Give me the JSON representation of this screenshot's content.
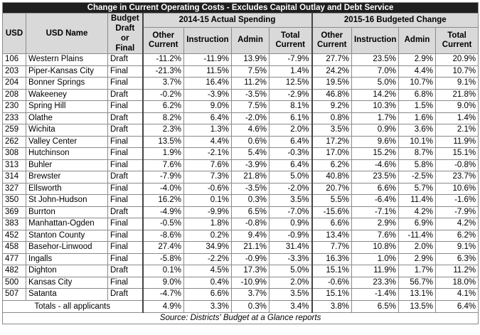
{
  "title": "Change in Current Operating Costs - Excludes Capital Outlay and Debt Service",
  "headers": {
    "usd": "USD",
    "usd_name": "USD Name",
    "budget": "Budget Draft or Final",
    "group_2014": "2014-15 Actual Spending",
    "group_2015": "2015-16 Budgeted Change",
    "sub": [
      "Other Current",
      "Instruction",
      "Admin",
      "Total Current",
      "Other Current",
      "Instruction",
      "Admin",
      "Total Current"
    ]
  },
  "rows": [
    {
      "usd": "106",
      "name": "Western Plains",
      "budget": "Draft",
      "v": [
        "-11.2%",
        "-11.9%",
        "13.9%",
        "-7.9%",
        "27.7%",
        "23.5%",
        "2.9%",
        "20.9%"
      ]
    },
    {
      "usd": "203",
      "name": "Piper-Kansas City",
      "budget": "Final",
      "v": [
        "-21.3%",
        "11.5%",
        "7.5%",
        "1.4%",
        "24.2%",
        "7.0%",
        "4.4%",
        "10.7%"
      ]
    },
    {
      "usd": "204",
      "name": "Bonner Springs",
      "budget": "Final",
      "v": [
        "3.7%",
        "16.4%",
        "11.2%",
        "12.5%",
        "19.5%",
        "5.0%",
        "10.7%",
        "9.1%"
      ]
    },
    {
      "usd": "208",
      "name": "Wakeeney",
      "budget": "Draft",
      "v": [
        "-0.2%",
        "-3.9%",
        "-3.5%",
        "-2.9%",
        "46.8%",
        "14.2%",
        "6.8%",
        "21.8%"
      ]
    },
    {
      "usd": "230",
      "name": "Spring Hill",
      "budget": "Final",
      "v": [
        "6.2%",
        "9.0%",
        "7.5%",
        "8.1%",
        "9.2%",
        "10.3%",
        "1.5%",
        "9.0%"
      ]
    },
    {
      "usd": "233",
      "name": "Olathe",
      "budget": "Draft",
      "v": [
        "8.2%",
        "6.4%",
        "-2.0%",
        "6.1%",
        "0.8%",
        "1.7%",
        "1.6%",
        "1.4%"
      ]
    },
    {
      "usd": "259",
      "name": "Wichita",
      "budget": "Draft",
      "v": [
        "2.3%",
        "1.3%",
        "4.6%",
        "2.0%",
        "3.5%",
        "0.9%",
        "3.6%",
        "2.1%"
      ]
    },
    {
      "usd": "262",
      "name": "Valley Center",
      "budget": "Final",
      "v": [
        "13.5%",
        "4.4%",
        "0.6%",
        "6.4%",
        "17.2%",
        "9.6%",
        "10.1%",
        "11.9%"
      ]
    },
    {
      "usd": "308",
      "name": "Hutchinson",
      "budget": "Final",
      "v": [
        "1.9%",
        "-2.1%",
        "5.4%",
        "-0.3%",
        "17.0%",
        "15.2%",
        "8.7%",
        "15.1%"
      ]
    },
    {
      "usd": "313",
      "name": "Buhler",
      "budget": "Final",
      "v": [
        "7.6%",
        "7.6%",
        "-3.9%",
        "6.4%",
        "6.2%",
        "-4.6%",
        "5.8%",
        "-0.8%"
      ]
    },
    {
      "usd": "314",
      "name": "Brewster",
      "budget": "Draft",
      "v": [
        "-7.9%",
        "7.3%",
        "21.8%",
        "5.0%",
        "40.8%",
        "23.5%",
        "-2.5%",
        "23.7%"
      ]
    },
    {
      "usd": "327",
      "name": "Ellsworth",
      "budget": "Final",
      "v": [
        "-4.0%",
        "-0.6%",
        "-3.5%",
        "-2.0%",
        "20.7%",
        "6.6%",
        "5.7%",
        "10.6%"
      ]
    },
    {
      "usd": "350",
      "name": "St John-Hudson",
      "budget": "Final",
      "v": [
        "16.2%",
        "0.1%",
        "0.3%",
        "3.5%",
        "5.5%",
        "-6.4%",
        "11.4%",
        "-1.6%"
      ]
    },
    {
      "usd": "369",
      "name": "Burrton",
      "budget": "Draft",
      "v": [
        "-4.9%",
        "-9.9%",
        "6.5%",
        "-7.0%",
        "-15.6%",
        "-7.1%",
        "4.2%",
        "-7.9%"
      ]
    },
    {
      "usd": "383",
      "name": "Manhattan-Ogden",
      "budget": "Final",
      "v": [
        "-0.5%",
        "1.8%",
        "-0.8%",
        "0.9%",
        "6.6%",
        "2.9%",
        "6.9%",
        "4.2%"
      ]
    },
    {
      "usd": "452",
      "name": "Stanton County",
      "budget": "Final",
      "v": [
        "-8.6%",
        "0.2%",
        "9.4%",
        "-0.9%",
        "13.4%",
        "7.6%",
        "-11.4%",
        "6.2%"
      ]
    },
    {
      "usd": "458",
      "name": "Basehor-Linwood",
      "budget": "Final",
      "v": [
        "27.4%",
        "34.9%",
        "21.1%",
        "31.4%",
        "7.7%",
        "10.8%",
        "2.0%",
        "9.1%"
      ]
    },
    {
      "usd": "477",
      "name": "Ingalls",
      "budget": "Final",
      "v": [
        "-5.8%",
        "-2.2%",
        "-0.9%",
        "-3.3%",
        "16.3%",
        "1.0%",
        "2.9%",
        "6.3%"
      ]
    },
    {
      "usd": "482",
      "name": "Dighton",
      "budget": "Draft",
      "v": [
        "0.1%",
        "4.5%",
        "17.3%",
        "5.0%",
        "15.1%",
        "11.9%",
        "1.7%",
        "11.2%"
      ]
    },
    {
      "usd": "500",
      "name": "Kansas City",
      "budget": "Final",
      "v": [
        "9.0%",
        "0.4%",
        "-10.9%",
        "2.0%",
        "-0.6%",
        "23.3%",
        "56.7%",
        "18.0%"
      ]
    },
    {
      "usd": "507",
      "name": "Satanta",
      "budget": "Draft",
      "v": [
        "-4.7%",
        "6.6%",
        "3.7%",
        "3.5%",
        "15.1%",
        "-1.4%",
        "13.1%",
        "4.1%"
      ]
    }
  ],
  "totals": {
    "label": "Totals - all applicants",
    "v": [
      "4.9%",
      "3.3%",
      "0.3%",
      "3.4%",
      "3.8%",
      "6.5%",
      "13.5%",
      "6.4%"
    ]
  },
  "source": "Source: Districts' Budget at a Glance reports"
}
